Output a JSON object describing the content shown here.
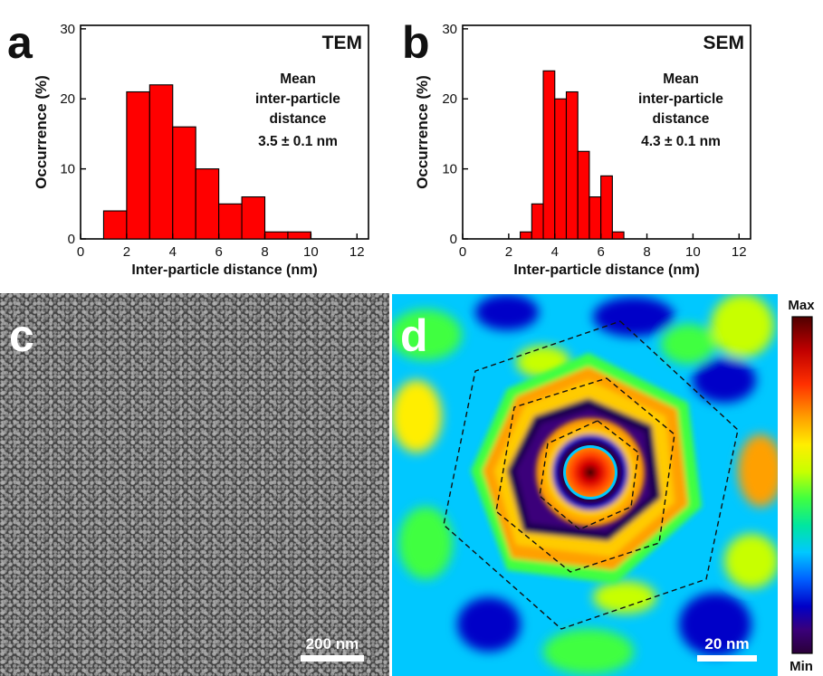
{
  "chart_data": [
    {
      "type": "bar",
      "panel_label": "a",
      "technique": "TEM",
      "annotation": [
        "Mean",
        "inter-particle",
        "distance",
        "3.5 ± 0.1 nm"
      ],
      "xlabel": "Inter-particle distance (nm)",
      "ylabel": "Occurrence (%)",
      "xlim": [
        0,
        12.5
      ],
      "ylim": [
        0,
        30.5
      ],
      "xticks": [
        0,
        2,
        4,
        6,
        8,
        10,
        12
      ],
      "yticks": [
        0,
        10,
        20,
        30
      ],
      "bin_width": 1,
      "x": [
        1.5,
        2.5,
        3.5,
        4.5,
        5.5,
        6.5,
        7.5,
        8.5,
        9.5
      ],
      "values": [
        4,
        21,
        22,
        16,
        10,
        5,
        6,
        1,
        1
      ],
      "bar_color": "#ff0000"
    },
    {
      "type": "bar",
      "panel_label": "b",
      "technique": "SEM",
      "annotation": [
        "Mean",
        "inter-particle",
        "distance",
        "4.3 ± 0.1 nm"
      ],
      "xlabel": "Inter-particle distance (nm)",
      "ylabel": "Occurrence (%)",
      "xlim": [
        0,
        12.5
      ],
      "ylim": [
        0,
        30.5
      ],
      "xticks": [
        0,
        2,
        4,
        6,
        8,
        10,
        12
      ],
      "yticks": [
        0,
        10,
        20,
        30
      ],
      "bin_width": 0.5,
      "x": [
        2.75,
        3.25,
        3.75,
        4.25,
        4.75,
        5.25,
        5.75,
        6.25,
        6.75
      ],
      "values": [
        1,
        5,
        24,
        20,
        21,
        12.5,
        6,
        9,
        1
      ],
      "bar_color": "#ff0000"
    }
  ],
  "panel_c": {
    "label": "c",
    "scalebar": "200 nm"
  },
  "panel_d": {
    "label": "d",
    "scalebar": "20 nm",
    "colorbar_max": "Max",
    "colorbar_min": "Min",
    "colormap": [
      "#2a0038",
      "#3a007a",
      "#0000c8",
      "#0060ff",
      "#00c8ff",
      "#00e6a0",
      "#40ff40",
      "#c8ff00",
      "#ffee00",
      "#ffa000",
      "#ff3000",
      "#c00000",
      "#500000"
    ]
  }
}
